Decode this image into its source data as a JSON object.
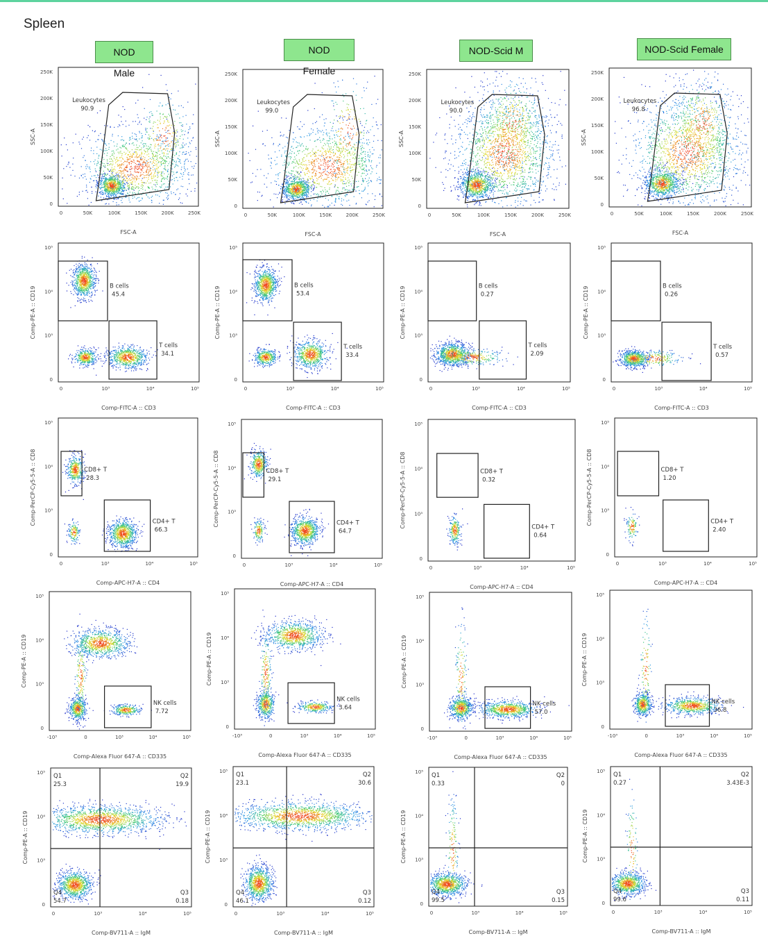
{
  "tissue": "Spleen",
  "columns": [
    "NOD Male",
    "NOD Female",
    "NOD-Scid M",
    "NOD-Scid Female"
  ],
  "colors": {
    "frame": "#222222",
    "header_bg": "#8ee68e",
    "header_border": "#4a8d4a",
    "topline": "#5dd39e"
  },
  "chart_data": [
    {
      "type": "scatter",
      "row": "leukocytes",
      "xlabel": "FSC-A",
      "ylabel": "SSC-A",
      "xticks": [
        "0",
        "50K",
        "100K",
        "150K",
        "200K",
        "250K"
      ],
      "yticks": [
        "0",
        "50K",
        "100K",
        "150K",
        "200K",
        "250K"
      ],
      "panels": [
        {
          "column": "NOD Male",
          "gates": [
            {
              "name": "Leukocytes",
              "value": "90.9"
            }
          ]
        },
        {
          "column": "NOD Female",
          "gates": [
            {
              "name": "Leukocytes",
              "value": "99.0"
            }
          ]
        },
        {
          "column": "NOD-Scid M",
          "gates": [
            {
              "name": "Leukocytes",
              "value": "90.0"
            }
          ]
        },
        {
          "column": "NOD-Scid Female",
          "gates": [
            {
              "name": "Leukocytes",
              "value": "96.8"
            }
          ]
        }
      ]
    },
    {
      "type": "scatter",
      "row": "b-t",
      "xlabel": "Comp-FITC-A :: CD3",
      "ylabel": "Comp-PE-A :: CD19",
      "xticks": [
        "0",
        "10³",
        "10⁴",
        "10⁵"
      ],
      "yticks": [
        "0",
        "10³",
        "10⁴",
        "10⁵"
      ],
      "panels": [
        {
          "column": "NOD Male",
          "gates": [
            {
              "name": "B cells",
              "value": "45.4"
            },
            {
              "name": "T cells",
              "value": "34.1"
            }
          ]
        },
        {
          "column": "NOD Female",
          "gates": [
            {
              "name": "B cells",
              "value": "53.4"
            },
            {
              "name": "T cells",
              "value": "33.4"
            }
          ]
        },
        {
          "column": "NOD-Scid M",
          "gates": [
            {
              "name": "B cells",
              "value": "0.27"
            },
            {
              "name": "T cells",
              "value": "2.09"
            }
          ]
        },
        {
          "column": "NOD-Scid Female",
          "gates": [
            {
              "name": "B cells",
              "value": "0.26"
            },
            {
              "name": "T cells",
              "value": "0.57"
            }
          ]
        }
      ]
    },
    {
      "type": "scatter",
      "row": "cd4-cd8",
      "xlabel": "Comp-APC-H7-A :: CD4",
      "ylabel": "Comp-PerCP-Cy5-5-A :: CD8",
      "xticks": [
        "0",
        "10³",
        "10⁴",
        "10⁵"
      ],
      "yticks": [
        "0",
        "10³",
        "10⁴",
        "10⁵"
      ],
      "panels": [
        {
          "column": "NOD Male",
          "gates": [
            {
              "name": "CD8+ T",
              "value": "28.3"
            },
            {
              "name": "CD4+ T",
              "value": "66.3"
            }
          ]
        },
        {
          "column": "NOD Female",
          "gates": [
            {
              "name": "CD8+ T",
              "value": "29.1"
            },
            {
              "name": "CD4+ T",
              "value": "64.7"
            }
          ]
        },
        {
          "column": "NOD-Scid M",
          "gates": [
            {
              "name": "CD8+ T",
              "value": "0.32"
            },
            {
              "name": "CD4+ T",
              "value": "0.64"
            }
          ]
        },
        {
          "column": "NOD-Scid Female",
          "gates": [
            {
              "name": "CD8+ T",
              "value": "1.20"
            },
            {
              "name": "CD4+ T",
              "value": "2.40"
            }
          ]
        }
      ]
    },
    {
      "type": "scatter",
      "row": "nk",
      "xlabel": "Comp-Alexa Fluor 647-A :: CD335",
      "ylabel": "Comp-PE-A :: CD19",
      "xticks": [
        "-10³",
        "0",
        "10³",
        "10⁴",
        "10⁵"
      ],
      "yticks": [
        "0",
        "10³",
        "10⁴",
        "10⁵"
      ],
      "panels": [
        {
          "column": "NOD Male",
          "gates": [
            {
              "name": "NK cells",
              "value": "7.72"
            }
          ]
        },
        {
          "column": "NOD Female",
          "gates": [
            {
              "name": "NK cells",
              "value": "3.64"
            }
          ]
        },
        {
          "column": "NOD-Scid M",
          "gates": [
            {
              "name": "NK cells",
              "value": "57.0"
            }
          ]
        },
        {
          "column": "NOD-Scid Female",
          "gates": [
            {
              "name": "NK cells",
              "value": "36.8"
            }
          ]
        }
      ]
    },
    {
      "type": "scatter",
      "row": "igm",
      "xlabel": "Comp-BV711-A :: IgM",
      "ylabel": "Comp-PE-A :: CD19",
      "xticks": [
        "0",
        "10³",
        "10⁴",
        "10⁵"
      ],
      "yticks": [
        "0",
        "10³",
        "10⁴",
        "10⁵"
      ],
      "panels": [
        {
          "column": "NOD Male",
          "quadrants": {
            "Q1": "25.3",
            "Q2": "19.9",
            "Q3": "0.18",
            "Q4": "54.7"
          }
        },
        {
          "column": "NOD Female",
          "quadrants": {
            "Q1": "23.1",
            "Q2": "30.6",
            "Q3": "0.12",
            "Q4": "46.1"
          }
        },
        {
          "column": "NOD-Scid M",
          "quadrants": {
            "Q1": "0.33",
            "Q2": "0",
            "Q3": "0.15",
            "Q4": "99.5"
          }
        },
        {
          "column": "NOD-Scid Female",
          "quadrants": {
            "Q1": "0.27",
            "Q2": "3.43E-3",
            "Q3": "0.11",
            "Q4": "99.6"
          }
        }
      ]
    }
  ]
}
